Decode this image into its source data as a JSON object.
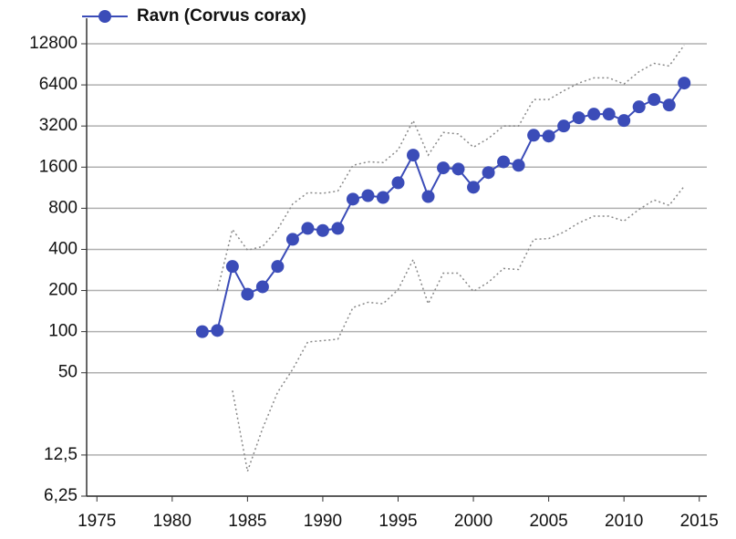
{
  "chart_data": {
    "type": "line",
    "x": [
      1982,
      1983,
      1984,
      1985,
      1986,
      1987,
      1988,
      1989,
      1990,
      1991,
      1992,
      1993,
      1994,
      1995,
      1996,
      1997,
      1998,
      1999,
      2000,
      2001,
      2002,
      2003,
      2004,
      2005,
      2006,
      2007,
      2008,
      2009,
      2010,
      2011,
      2012,
      2013,
      2014
    ],
    "series": [
      {
        "name": "Ravn (Corvus corax)",
        "color": "#3b4cb8",
        "marker": true,
        "values": [
          100,
          102,
          300,
          188,
          213,
          300,
          474,
          570,
          550,
          570,
          933,
          990,
          960,
          1230,
          1960,
          975,
          1580,
          1550,
          1140,
          1460,
          1750,
          1650,
          2740,
          2700,
          3200,
          3680,
          3910,
          3910,
          3510,
          4420,
          5000,
          4560,
          6600
        ]
      },
      {
        "color": "#888888",
        "dashed": true,
        "values": [
          null,
          200,
          560,
          395,
          420,
          560,
          860,
          1040,
          1030,
          1070,
          1650,
          1750,
          1730,
          2140,
          3510,
          1960,
          2870,
          2800,
          2240,
          2600,
          3200,
          3200,
          5000,
          5000,
          5800,
          6600,
          7200,
          7200,
          6500,
          8000,
          9200,
          8800,
          12500
        ]
      },
      {
        "color": "#888888",
        "dashed": true,
        "values": [
          null,
          null,
          37,
          9.5,
          19.5,
          36,
          53,
          84,
          86,
          88,
          150,
          164,
          160,
          203,
          337,
          160,
          268,
          268,
          197,
          230,
          290,
          285,
          474,
          480,
          535,
          625,
          700,
          700,
          645,
          785,
          920,
          840,
          1160
        ]
      }
    ],
    "log_scale_y": true,
    "grid": true,
    "legend": "top-left",
    "xlim": [
      1974.5,
      2015.5
    ],
    "xticks": [
      1975,
      1980,
      1985,
      1990,
      1995,
      2000,
      2005,
      2010,
      2015
    ],
    "ylim": [
      6.25,
      12800
    ],
    "yticks": [
      {
        "value": 6.25,
        "label": "6,25"
      },
      {
        "value": 12.5,
        "label": "12,5"
      },
      50,
      100,
      200,
      400,
      800,
      1600,
      3200,
      6400,
      12800
    ]
  }
}
